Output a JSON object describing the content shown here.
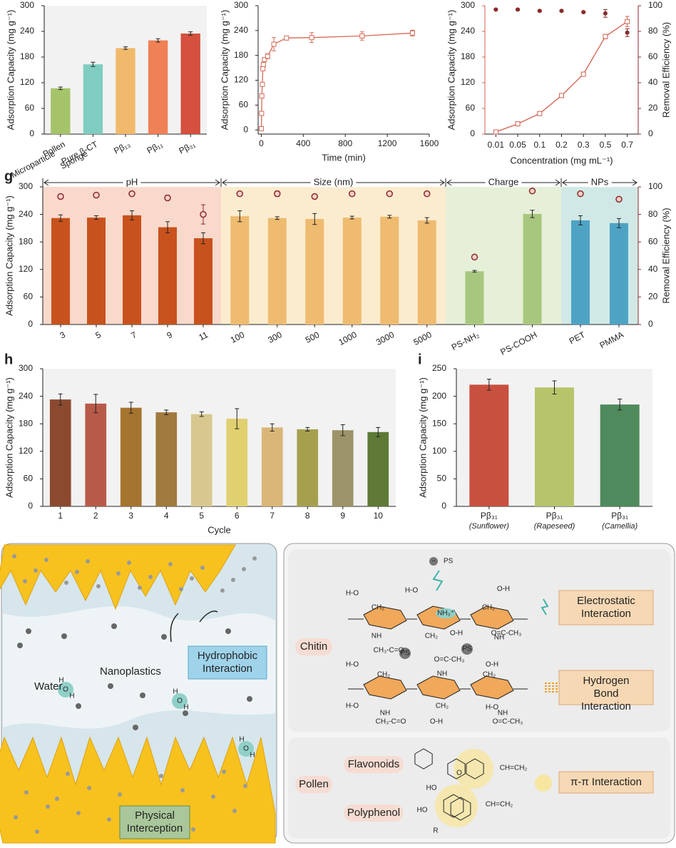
{
  "chart_data": [
    {
      "type": "bar",
      "ylabel": "Adsorption Capacity (mg g⁻¹)",
      "categories": [
        [
          "Pollen",
          "Microparticle"
        ],
        [
          "Pure β-CT",
          "Sponge"
        ],
        [
          "Pβ₁₃"
        ],
        [
          "Pβ₁₁"
        ],
        [
          "Pβ₃₁"
        ]
      ],
      "values": [
        107,
        163,
        201,
        219,
        235
      ],
      "errors": [
        3,
        5,
        3,
        4,
        4
      ],
      "colors": [
        "#a5c46a",
        "#7fcdc0",
        "#f0b96c",
        "#f08055",
        "#d4503f"
      ],
      "ylim": [
        0,
        300
      ],
      "yticks": [
        0,
        60,
        120,
        180,
        240,
        300
      ]
    },
    {
      "type": "line",
      "ylabel": "Adsorption Capacity (mg g⁻¹)",
      "xlabel": "Time (min)",
      "color": "#d46a55",
      "x": [
        1,
        3,
        5,
        10,
        15,
        20,
        30,
        60,
        120,
        240,
        480,
        960,
        1440
      ],
      "values": [
        3,
        40,
        82,
        110,
        148,
        158,
        170,
        178,
        207,
        222,
        223,
        227,
        234
      ],
      "errors": [
        2,
        3,
        3,
        4,
        4,
        5,
        5,
        6,
        16,
        4,
        12,
        10,
        7
      ],
      "xlim": [
        -30,
        1600
      ],
      "xticks": [
        0,
        400,
        800,
        1200,
        1600
      ],
      "ylim": [
        -10,
        300
      ],
      "yticks": [
        0,
        60,
        120,
        180,
        240,
        300
      ]
    },
    {
      "type": "dual_line",
      "xlabel": "Concentration (mg mL⁻¹)",
      "categories": [
        "0.01",
        "0.05",
        "0.1",
        "0.2",
        "0.3",
        "0.5",
        "0.7"
      ],
      "series": [
        {
          "name": "Adsorption Capacity (mg g⁻¹)",
          "color": "#d0604e",
          "values": [
            5,
            24,
            48,
            90,
            140,
            228,
            263
          ],
          "errors": [
            1,
            1,
            2,
            2,
            2,
            5,
            12
          ]
        },
        {
          "name": "Removal Efficiency (%)",
          "color": "#8b2a2a",
          "axis": "y2",
          "values": [
            97,
            97,
            96,
            96,
            95,
            94,
            79
          ],
          "errors": [
            0.5,
            0.5,
            0.5,
            0.5,
            0.5,
            3,
            3
          ]
        }
      ],
      "ylim": [
        0,
        300
      ],
      "yticks": [
        0,
        60,
        120,
        180,
        240,
        300
      ],
      "y2lim": [
        0,
        100
      ],
      "y2ticks": [
        0,
        20,
        40,
        60,
        80,
        100
      ]
    },
    {
      "type": "grouped_bar",
      "label": "g",
      "ylabel": "Adsorption Capacity (mg g⁻¹)",
      "y2label": "Removal Efficiency (%)",
      "groups": [
        {
          "name": "pH",
          "color": "#c8521e",
          "background": "#f9d9cb",
          "categories": [
            "3",
            "5",
            "7",
            "9",
            "11"
          ],
          "values": [
            232,
            233,
            238,
            212,
            188
          ],
          "errors": [
            7,
            4,
            10,
            12,
            12
          ],
          "efficiency": [
            93,
            94,
            95,
            92,
            80
          ],
          "efficiency_errors": [
            1,
            1,
            1,
            2,
            7
          ]
        },
        {
          "name": "Size (nm)",
          "color": "#eebb70",
          "background": "#fbeccf",
          "categories": [
            "100",
            "300",
            "500",
            "1000",
            "3000",
            "5000"
          ],
          "values": [
            236,
            232,
            230,
            233,
            235,
            227
          ],
          "errors": [
            12,
            3,
            12,
            3,
            3,
            6
          ],
          "efficiency": [
            95,
            95,
            93,
            95,
            95,
            95
          ],
          "efficiency_errors": [
            1,
            2,
            1,
            1,
            1,
            1
          ]
        },
        {
          "name": "Charge",
          "color": "#a8c77e",
          "background": "#e6f0d8",
          "categories": [
            "PS-NH₂",
            "PS-COOH"
          ],
          "values": [
            116,
            241
          ],
          "errors": [
            2,
            8
          ],
          "efficiency": [
            49,
            97
          ],
          "efficiency_errors": [
            1,
            1
          ]
        },
        {
          "name": "NPs",
          "color": "#4ea3c4",
          "background": "#d1e9e6",
          "categories": [
            "PET",
            "PMMA"
          ],
          "values": [
            227,
            221
          ],
          "errors": [
            10,
            10
          ],
          "efficiency": [
            95,
            91
          ],
          "efficiency_errors": [
            1,
            1
          ]
        }
      ],
      "efficiency_color": "#8b2a2a",
      "ylim": [
        0,
        300
      ],
      "yticks": [
        0,
        60,
        120,
        180,
        240,
        300
      ],
      "y2lim": [
        0,
        100
      ],
      "y2ticks": [
        0,
        20,
        40,
        60,
        80,
        100
      ]
    },
    {
      "type": "bar",
      "label": "h",
      "ylabel": "Adsorption Capacity (mg g⁻¹)",
      "xlabel": "Cycle",
      "categories": [
        "1",
        "2",
        "3",
        "4",
        "5",
        "6",
        "7",
        "8",
        "9",
        "10"
      ],
      "values": [
        233,
        224,
        215,
        205,
        201,
        191,
        172,
        168,
        166,
        162
      ],
      "errors": [
        12,
        20,
        12,
        5,
        5,
        22,
        8,
        4,
        12,
        10
      ],
      "colors": [
        "#8b4a30",
        "#b85a4a",
        "#a5742e",
        "#a07a3e",
        "#d8c890",
        "#e0d070",
        "#d9b678",
        "#a6a04e",
        "#9c9468",
        "#5e7a36"
      ],
      "ylim": [
        0,
        300
      ],
      "yticks": [
        0,
        60,
        120,
        180,
        240,
        300
      ]
    },
    {
      "type": "bar",
      "label": "i",
      "ylabel": "Adsorption Capacity (mg g⁻¹)",
      "categories": [
        [
          "Pβ₃₁",
          "(Sunflower)"
        ],
        [
          "Pβ₃₁",
          "(Rapeseed)"
        ],
        [
          "Pβ₃₁",
          "(Camellia)"
        ]
      ],
      "values": [
        221,
        216,
        185
      ],
      "errors": [
        10,
        12,
        10
      ],
      "colors": [
        "#c8503f",
        "#b8c46a",
        "#4f8a5c"
      ],
      "ylim": [
        0,
        250
      ],
      "yticks": [
        0,
        50,
        100,
        150,
        200,
        250
      ]
    }
  ],
  "diagram": {
    "left": {
      "water": "Water",
      "nanoplastics": "Nanoplastics",
      "hydrophobic": "Hydrophobic Interaction",
      "physical": "Physical Interception",
      "oxygen": "O",
      "hydrogen": "H"
    },
    "right": {
      "chitin": "Chitin",
      "electrostatic": "Electrostatic Interaction",
      "hydrogen_bond": "Hydrogen Bond Interaction",
      "pollen": "Pollen",
      "flavonoids": "Flavonoids",
      "polyphenol": "Polyphenol",
      "pi_pi": "π-π Interaction",
      "ps": "PS",
      "minus": "−",
      "nh3": "NH₃⁺",
      "ho": "H-O",
      "oh": "O-H",
      "ch2": "CH₂",
      "nh": "NH",
      "acetyl": "CH₃-C=O",
      "acetyl_r": "O=C-CH₃",
      "o": "O",
      "vinyl": "CH=CH₂",
      "hydroxyl": "HO",
      "r": "R"
    }
  }
}
